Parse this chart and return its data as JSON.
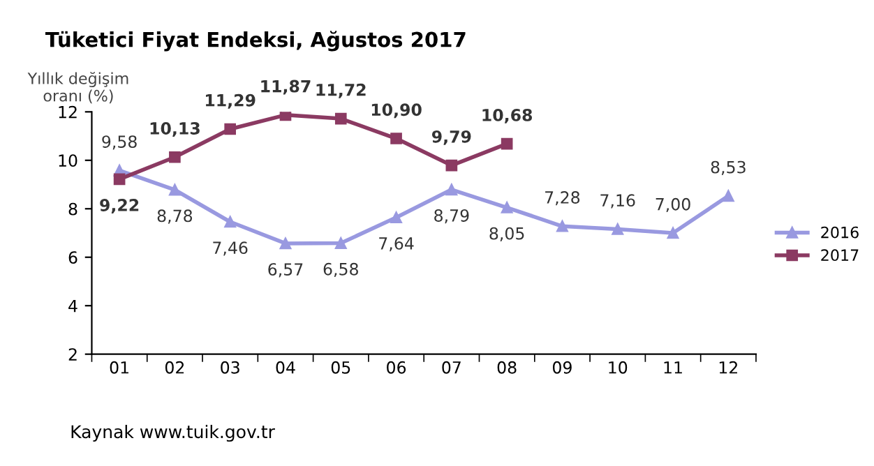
{
  "chart_data": {
    "type": "line",
    "title": "Tüketici Fiyat Endeksi, Ağustos 2017",
    "ylabel": "Yıllık değişim\noranı (%)",
    "categories": [
      "01",
      "02",
      "03",
      "04",
      "05",
      "06",
      "07",
      "08",
      "09",
      "10",
      "11",
      "12"
    ],
    "series": [
      {
        "name": "2016",
        "color": "#9999e0",
        "marker": "triangle",
        "values": [
          9.58,
          8.78,
          7.46,
          6.57,
          6.58,
          7.64,
          8.79,
          8.05,
          7.28,
          7.16,
          7.0,
          8.53
        ],
        "value_labels": [
          "9,58",
          "8,78",
          "7,46",
          "6,57",
          "6,58",
          "7,64",
          "8,79",
          "8,05",
          "7,28",
          "7,16",
          "7,00",
          "8,53"
        ]
      },
      {
        "name": "2017",
        "color": "#8b3a62",
        "marker": "square",
        "values": [
          9.22,
          10.13,
          11.29,
          11.87,
          11.72,
          10.9,
          9.79,
          10.68,
          null,
          null,
          null,
          null
        ],
        "value_labels": [
          "9,22",
          "10,13",
          "11,29",
          "11,87",
          "11,72",
          "10,90",
          "9,79",
          "10,68",
          null,
          null,
          null,
          null
        ]
      }
    ],
    "ylim": [
      2,
      12
    ],
    "yticks": [
      2,
      4,
      6,
      8,
      10,
      12
    ],
    "grid": false,
    "legend": "right",
    "line_style": "solid",
    "annotations": [
      "Kaynak www.tuik.gov.tr"
    ]
  }
}
